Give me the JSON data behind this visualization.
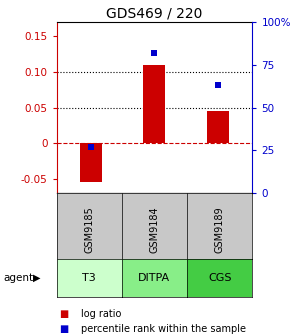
{
  "title": "GDS469 / 220",
  "categories": [
    "T3",
    "DITPA",
    "CGS"
  ],
  "sample_labels": [
    "GSM9185",
    "GSM9184",
    "GSM9189"
  ],
  "log_ratios": [
    -0.055,
    0.11,
    0.045
  ],
  "percentile_ranks": [
    27,
    82,
    63
  ],
  "ylim_left": [
    -0.07,
    0.17
  ],
  "ylim_right": [
    0,
    100
  ],
  "left_yticks": [
    -0.05,
    0.0,
    0.05,
    0.1,
    0.15
  ],
  "right_yticks": [
    0,
    25,
    50,
    75,
    100
  ],
  "right_yticklabels": [
    "0",
    "25",
    "50",
    "75",
    "100%"
  ],
  "dotted_lines": [
    0.05,
    0.1
  ],
  "zero_line": 0.0,
  "bar_color": "#cc0000",
  "dot_color": "#0000cc",
  "bar_width": 0.35,
  "agent_colors": [
    "#ccffcc",
    "#88ee88",
    "#44cc44"
  ],
  "gsm_box_color": "#c8c8c8",
  "legend_log": "log ratio",
  "legend_pct": "percentile rank within the sample",
  "title_fontsize": 10,
  "tick_fontsize": 7.5,
  "cell_fontsize": 7,
  "agent_fontsize": 8,
  "legend_fontsize": 7
}
